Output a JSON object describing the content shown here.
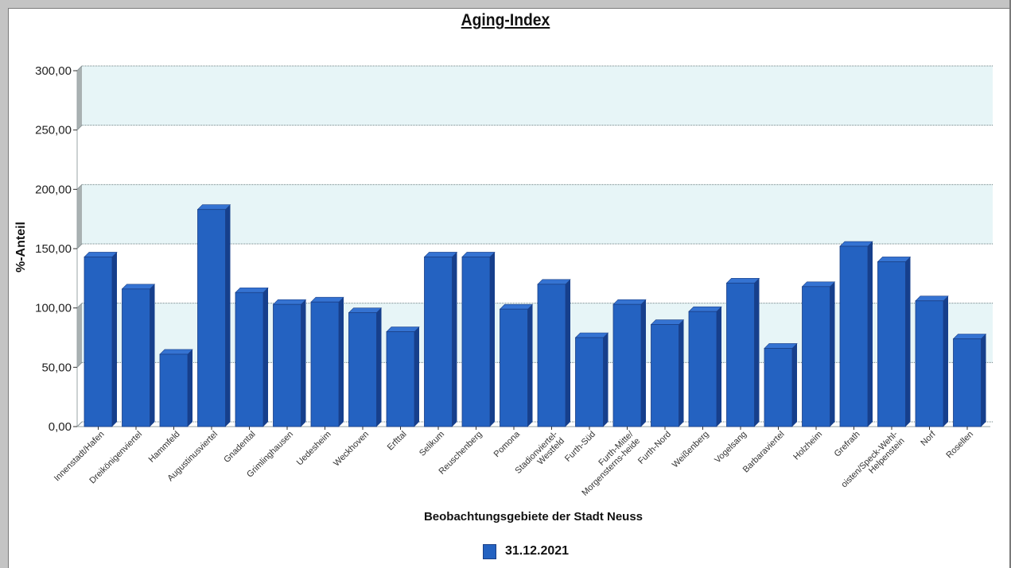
{
  "chart_data": {
    "type": "bar",
    "title": "Aging-Index",
    "xlabel": "Beobachtungsgebiete der Stadt Neuss",
    "ylabel": "%-Anteil",
    "ylim": [
      0,
      300
    ],
    "yticks": [
      "0,00",
      "50,00",
      "100,00",
      "150,00",
      "200,00",
      "250,00",
      "300,00"
    ],
    "ytick_values": [
      0,
      50,
      100,
      150,
      200,
      250,
      300
    ],
    "grid": true,
    "legend_position": "bottom",
    "categories": [
      [
        "Innenstadt/Hafen"
      ],
      [
        "Dreikönigenviertel"
      ],
      [
        "Hammfeld"
      ],
      [
        "Augustinusviertel"
      ],
      [
        "Gnadental"
      ],
      [
        "Grimlinghausen"
      ],
      [
        "Uedesheim"
      ],
      [
        "Weckhoven"
      ],
      [
        "Erfttal"
      ],
      [
        "Selikum"
      ],
      [
        "Reuschenberg"
      ],
      [
        "Pomona"
      ],
      [
        "Stadionviertel-",
        "Westfeld"
      ],
      [
        "Furth-Süd"
      ],
      [
        "Furth-Mitte/",
        "Morgensterns-heide"
      ],
      [
        "Furth-Nord"
      ],
      [
        "Weißenberg"
      ],
      [
        "Vogelsang"
      ],
      [
        "Barbaraviertel"
      ],
      [
        "Holzheim"
      ],
      [
        "Grefrath"
      ],
      [
        "oisten/Speck-Wehl-",
        "Helpenstein"
      ],
      [
        "Norf"
      ],
      [
        "Rosellen"
      ]
    ],
    "series": [
      {
        "name": "31.12.2021",
        "color": "#2462c1",
        "values": [
          143,
          116,
          61,
          183,
          113,
          103,
          105,
          96,
          80,
          143,
          143,
          99,
          120,
          75,
          103,
          86,
          97,
          121,
          66,
          118,
          152,
          139,
          106,
          74
        ]
      }
    ]
  },
  "colors": {
    "bar_front": "#2462c1",
    "bar_top": "#3573d2",
    "bar_side": "#163f8c",
    "band": "#e7f5f7",
    "axis_wall": "#a9b1b2"
  }
}
